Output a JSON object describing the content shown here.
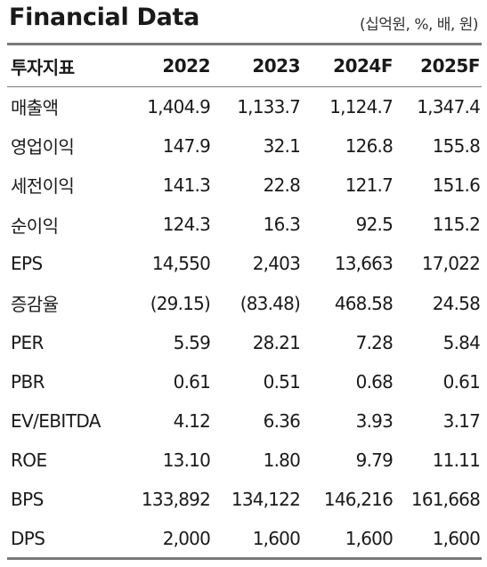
{
  "title": "Financial Data",
  "unit": "(십억원, %, 배, 원)",
  "columns": [
    "투자지표",
    "2022",
    "2023",
    "2024F",
    "2025F"
  ],
  "rows": [
    {
      "label": "매출액",
      "values": [
        "1,404.9",
        "1,133.7",
        "1,124.7",
        "1,347.4"
      ]
    },
    {
      "label": "영업이익",
      "values": [
        "147.9",
        "32.1",
        "126.8",
        "155.8"
      ]
    },
    {
      "label": "세전이익",
      "values": [
        "141.3",
        "22.8",
        "121.7",
        "151.6"
      ]
    },
    {
      "label": "순이익",
      "values": [
        "124.3",
        "16.3",
        "92.5",
        "115.2"
      ]
    },
    {
      "label": "EPS",
      "values": [
        "14,550",
        "2,403",
        "13,663",
        "17,022"
      ]
    },
    {
      "label": "증감율",
      "values": [
        "(29.15)",
        "(83.48)",
        "468.58",
        "24.58"
      ]
    },
    {
      "label": "PER",
      "values": [
        "5.59",
        "28.21",
        "7.28",
        "5.84"
      ]
    },
    {
      "label": "PBR",
      "values": [
        "0.61",
        "0.51",
        "0.68",
        "0.61"
      ]
    },
    {
      "label": "EV/EBITDA",
      "values": [
        "4.12",
        "6.36",
        "3.93",
        "3.17"
      ]
    },
    {
      "label": "ROE",
      "values": [
        "13.10",
        "1.80",
        "9.79",
        "11.11"
      ]
    },
    {
      "label": "BPS",
      "values": [
        "133,892",
        "134,122",
        "146,216",
        "161,668"
      ]
    },
    {
      "label": "DPS",
      "values": [
        "2,000",
        "1,600",
        "1,600",
        "1,600"
      ]
    }
  ]
}
